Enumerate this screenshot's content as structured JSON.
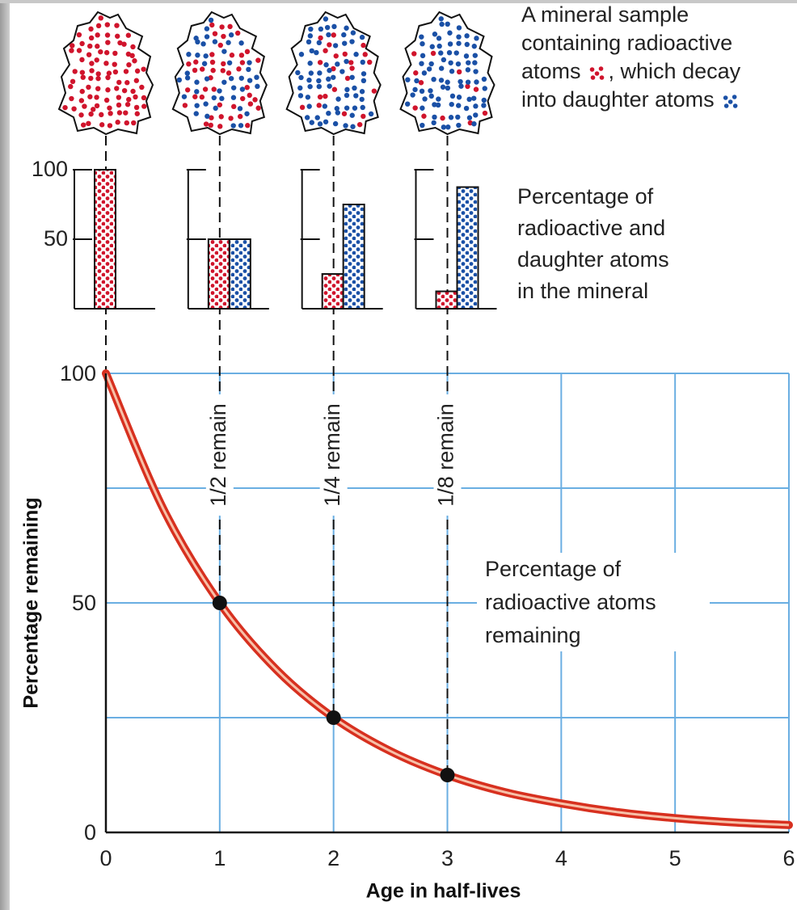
{
  "sample_caption": [
    "A mineral sample",
    "containing radioactive",
    "atoms",
    ", which decay",
    "into daughter atoms"
  ],
  "chart_data": [
    {
      "type": "line",
      "x_label": "Age in half-lives",
      "y_label": "Percentage remaining",
      "xlim": [
        0,
        6
      ],
      "ylim": [
        0,
        100
      ],
      "xticks": [
        0,
        1,
        2,
        3,
        4,
        5,
        6
      ],
      "yticks": [
        0,
        50,
        100
      ],
      "minor_yticks": [
        25,
        75
      ],
      "grid": true,
      "grid_color": "#6aaee2",
      "series": [
        {
          "color": "#d7301f",
          "x": [
            0,
            0.5,
            1,
            1.5,
            2,
            2.5,
            3,
            3.5,
            4,
            4.5,
            5,
            5.5,
            6
          ],
          "values": [
            100,
            70.7,
            50,
            35.4,
            25,
            17.7,
            12.5,
            8.8,
            6.3,
            4.4,
            3.1,
            2.2,
            1.6
          ]
        },
        {
          "color": "#111111",
          "marker": true,
          "x": [
            1,
            2,
            3
          ],
          "values": [
            50,
            25,
            12.5
          ]
        }
      ],
      "guide_labels": [
        "1/2 remain",
        "1/4 remain",
        "1/8 remain"
      ],
      "annotation": [
        "Percentage of",
        "radioactive atoms",
        "remaining"
      ]
    },
    {
      "type": "bar",
      "categories": [
        null
      ],
      "ylim": [
        0,
        100
      ],
      "yticks": [
        50,
        100
      ],
      "series": [
        {
          "color": "#d0142c",
          "values": [
            100
          ]
        }
      ],
      "annotation": [
        "Percentage of",
        "radioactive and",
        "daughter atoms",
        "in the mineral"
      ]
    },
    {
      "type": "bar",
      "categories": [
        null
      ],
      "ylim": [
        0,
        100
      ],
      "ytick_marks": [
        50,
        100
      ],
      "series": [
        {
          "color": "#d0142c",
          "values": [
            50
          ]
        },
        {
          "color": "#1a50a6",
          "values": [
            50
          ]
        }
      ]
    },
    {
      "type": "bar",
      "categories": [
        null
      ],
      "ylim": [
        0,
        100
      ],
      "ytick_marks": [
        50,
        100
      ],
      "series": [
        {
          "color": "#d0142c",
          "values": [
            25
          ]
        },
        {
          "color": "#1a50a6",
          "values": [
            75
          ]
        }
      ]
    },
    {
      "type": "bar",
      "categories": [
        null
      ],
      "ylim": [
        0,
        100
      ],
      "ytick_marks": [
        50,
        100
      ],
      "series": [
        {
          "color": "#d0142c",
          "values": [
            12.5
          ]
        },
        {
          "color": "#1a50a6",
          "values": [
            87.5
          ]
        }
      ]
    }
  ]
}
